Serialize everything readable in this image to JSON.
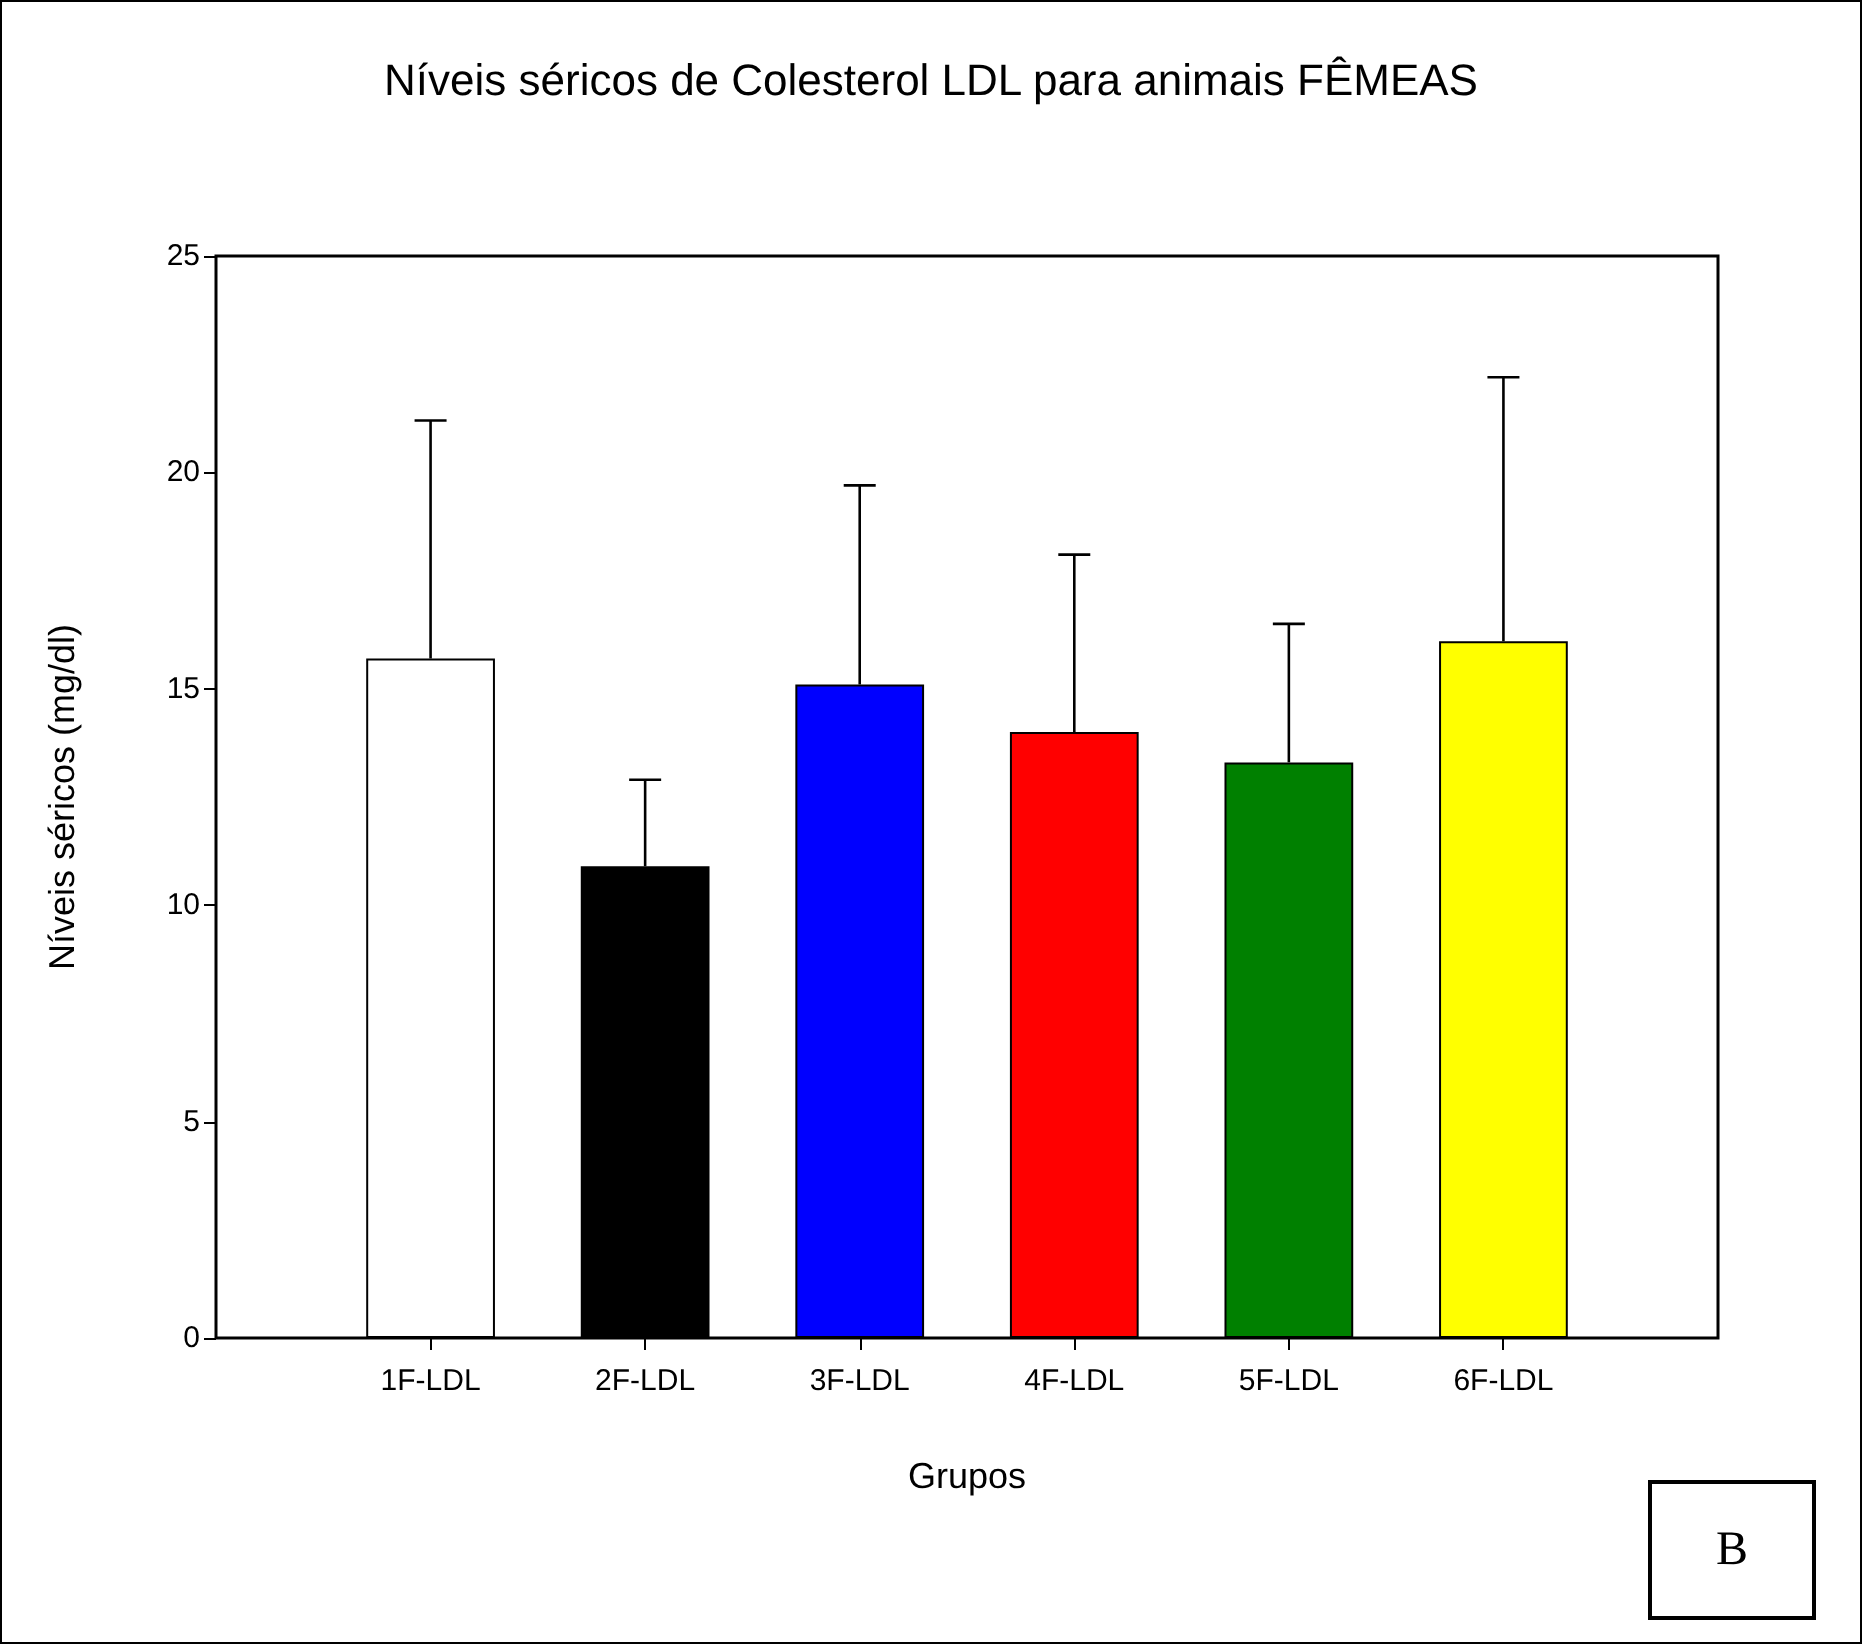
{
  "chart_data": {
    "type": "bar",
    "title": "Níveis séricos de Colesterol LDL para animais FÊMEAS",
    "xlabel": "Grupos",
    "ylabel": "Níveis séricos (mg/dl)",
    "categories": [
      "1F-LDL",
      "2F-LDL",
      "3F-LDL",
      "4F-LDL",
      "5F-LDL",
      "6F-LDL"
    ],
    "values": [
      15.7,
      10.9,
      15.1,
      14.0,
      13.3,
      16.1
    ],
    "colors": [
      "#ffffff",
      "#000000",
      "#0000ff",
      "#ff0000",
      "#008000",
      "#ffff00"
    ],
    "errors": [
      [
        15.7,
        21.2
      ],
      [
        10.9,
        12.9
      ],
      [
        15.1,
        19.7
      ],
      [
        14.0,
        18.1
      ],
      [
        13.3,
        16.5
      ],
      [
        16.1,
        22.2
      ]
    ],
    "ylim": [
      0,
      25
    ],
    "yticks": [
      0,
      5,
      10,
      15,
      20,
      25
    ],
    "annotations": [
      "B"
    ]
  }
}
